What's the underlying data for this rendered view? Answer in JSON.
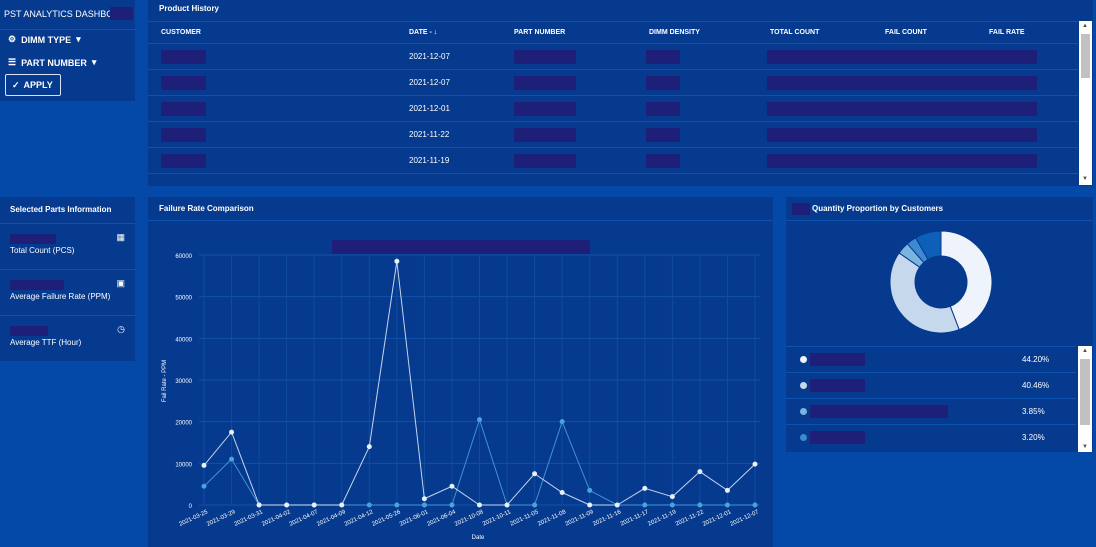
{
  "app": {
    "title": "PST ANALYTICS DASHBOARD"
  },
  "filters": {
    "dimm_type_label": "DIMM TYPE",
    "part_number_label": "PART NUMBER",
    "apply_label": "APPLY"
  },
  "history": {
    "title": "Product History",
    "columns": [
      "CUSTOMER",
      "DATE - ↓",
      "PART NUMBER",
      "DIMM DENSITY",
      "TOTAL COUNT",
      "FAIL COUNT",
      "FAIL RATE"
    ],
    "rows": [
      {
        "date": "2021-12-07"
      },
      {
        "date": "2021-12-07"
      },
      {
        "date": "2021-12-01"
      },
      {
        "date": "2021-11-22"
      },
      {
        "date": "2021-11-19"
      }
    ]
  },
  "parts": {
    "title": "Selected Parts Information",
    "metrics": [
      {
        "label": "Total Count (PCS)",
        "icon": "grid-icon"
      },
      {
        "label": "Average Failure Rate (PPM)",
        "icon": "calculator-icon"
      },
      {
        "label": "Average TTF (Hour)",
        "icon": "clock-icon"
      }
    ]
  },
  "chart_data": {
    "type": "line",
    "title": "Failure Rate Comparison",
    "xlabel": "Date",
    "ylabel": "Fail Rate - PPM",
    "ylim": [
      0,
      60000
    ],
    "yticks": [
      0,
      10000,
      20000,
      30000,
      40000,
      50000,
      60000
    ],
    "grid": true,
    "categories": [
      "2021-03-25",
      "2021-03-29",
      "2021-03-31",
      "2021-04-02",
      "2021-04-07",
      "2021-04-09",
      "2021-04-12",
      "2021-05-26",
      "2021-06-01",
      "2021-06-04",
      "2021-10-08",
      "2021-10-11",
      "2021-11-05",
      "2021-11-08",
      "2021-11-09",
      "2021-11-16",
      "2021-11-17",
      "2021-11-19",
      "2021-11-22",
      "2021-12-01",
      "2021-12-07"
    ],
    "series": [
      {
        "color": "#e8f0fb",
        "values": [
          9500,
          17500,
          0,
          0,
          0,
          0,
          14000,
          58500,
          1500,
          4500,
          0,
          0,
          7500,
          3000,
          0,
          0,
          4000,
          2000,
          8000,
          3500,
          9800
        ]
      },
      {
        "color": "#4aa3df",
        "values": [
          4500,
          11000,
          0,
          0,
          0,
          0,
          0,
          0,
          0,
          0,
          20500,
          0,
          0,
          20000,
          3500,
          0,
          0,
          0,
          0,
          0,
          0
        ]
      }
    ]
  },
  "proportion": {
    "title": "Quantity Proportion by Customers",
    "slices": [
      {
        "pct": 44.2,
        "label": "44.20%",
        "color": "#eef3fc"
      },
      {
        "pct": 40.46,
        "label": "40.46%",
        "color": "#c5d8ec"
      },
      {
        "pct": 3.85,
        "label": "3.85%",
        "color": "#7cb4e0"
      },
      {
        "pct": 3.2,
        "label": "3.20%",
        "color": "#3e8ad0"
      },
      {
        "pct": 8.29,
        "label": "",
        "color": "#0d5fb8"
      }
    ]
  }
}
